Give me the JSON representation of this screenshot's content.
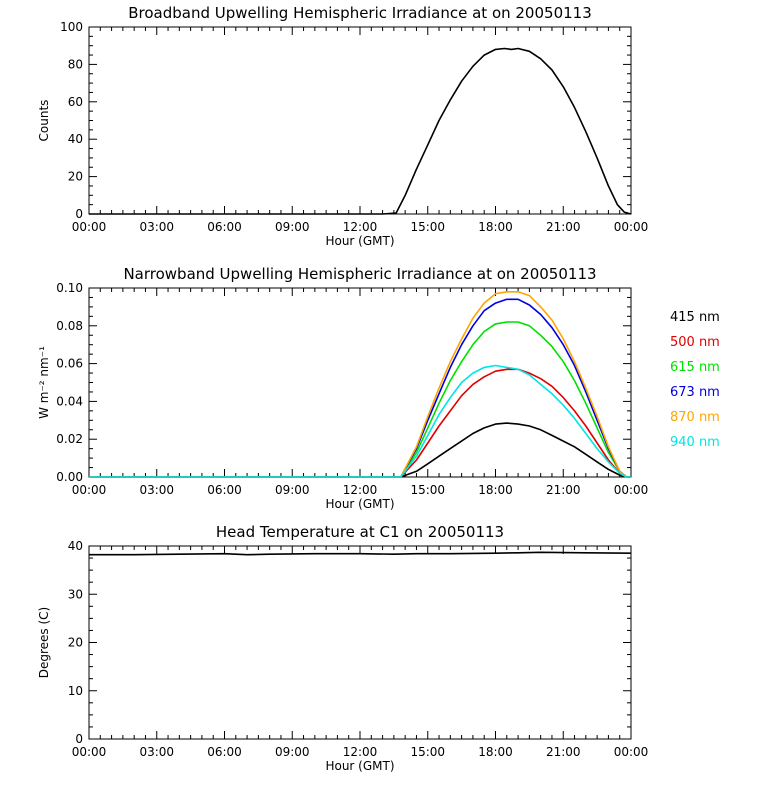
{
  "chart_data": [
    {
      "type": "line",
      "title": "Broadband Upwelling Hemispheric Irradiance at  on 20050113",
      "xlabel": "Hour (GMT)",
      "ylabel": "Counts",
      "xlim": [
        0,
        24
      ],
      "ylim": [
        0,
        100
      ],
      "x_ticks": [
        "00:00",
        "03:00",
        "06:00",
        "09:00",
        "12:00",
        "15:00",
        "18:00",
        "21:00",
        "00:00"
      ],
      "y_ticks": [
        "0",
        "20",
        "40",
        "60",
        "80",
        "100"
      ],
      "grid": false,
      "series": [
        {
          "color": "#000000",
          "x": [
            0,
            2,
            4,
            6,
            8,
            10,
            12,
            13,
            13.6,
            14,
            14.5,
            15,
            15.5,
            16,
            16.5,
            17,
            17.5,
            18,
            18.4,
            18.7,
            19,
            19.5,
            20,
            20.5,
            21,
            21.5,
            22,
            22.5,
            23,
            23.4,
            23.7,
            24
          ],
          "y": [
            0,
            0,
            0,
            0,
            0,
            0,
            0,
            0,
            0.5,
            10,
            24,
            37,
            50,
            61,
            71,
            79,
            85,
            88,
            88.5,
            88,
            88.5,
            87,
            83,
            77,
            68,
            57,
            44,
            30,
            15,
            5,
            1,
            0
          ]
        }
      ]
    },
    {
      "type": "line",
      "title": "Narrowband Upwelling Hemispheric Irradiance at  on 20050113",
      "xlabel": "Hour (GMT)",
      "ylabel": "W m⁻² nm⁻¹",
      "xlim": [
        0,
        24
      ],
      "ylim": [
        0,
        0.1
      ],
      "x_ticks": [
        "00:00",
        "03:00",
        "06:00",
        "09:00",
        "12:00",
        "15:00",
        "18:00",
        "21:00",
        "00:00"
      ],
      "y_ticks": [
        "0.00",
        "0.02",
        "0.04",
        "0.06",
        "0.08",
        "0.10"
      ],
      "grid": false,
      "legend_position": "right",
      "series": [
        {
          "name": "415 nm",
          "color": "#000000",
          "x": [
            0,
            13.5,
            13.8,
            14.5,
            15,
            15.5,
            16,
            16.5,
            17,
            17.5,
            18,
            18.5,
            19,
            19.5,
            20,
            20.5,
            21,
            21.5,
            22,
            22.5,
            23,
            23.5,
            23.8,
            24
          ],
          "y": [
            0,
            0,
            0,
            0.003,
            0.007,
            0.011,
            0.015,
            0.019,
            0.023,
            0.026,
            0.028,
            0.0285,
            0.028,
            0.027,
            0.025,
            0.022,
            0.019,
            0.016,
            0.012,
            0.008,
            0.004,
            0.001,
            0,
            0
          ]
        },
        {
          "name": "500 nm",
          "color": "#e00000",
          "x": [
            0,
            13.5,
            13.8,
            14.5,
            15,
            15.5,
            16,
            16.5,
            17,
            17.5,
            18,
            18.5,
            19,
            19.5,
            20,
            20.5,
            21,
            21.5,
            22,
            22.5,
            23,
            23.5,
            23.8,
            24
          ],
          "y": [
            0,
            0,
            0,
            0.009,
            0.018,
            0.027,
            0.035,
            0.043,
            0.049,
            0.053,
            0.056,
            0.057,
            0.057,
            0.055,
            0.052,
            0.048,
            0.042,
            0.035,
            0.027,
            0.018,
            0.009,
            0.002,
            0,
            0
          ]
        },
        {
          "name": "615 nm",
          "color": "#00e000",
          "x": [
            0,
            13.5,
            13.8,
            14.5,
            15,
            15.5,
            16,
            16.5,
            17,
            17.5,
            18,
            18.5,
            19,
            19.5,
            20,
            20.5,
            21,
            21.5,
            22,
            22.5,
            23,
            23.5,
            23.8,
            24
          ],
          "y": [
            0,
            0,
            0,
            0.013,
            0.026,
            0.039,
            0.051,
            0.061,
            0.07,
            0.077,
            0.081,
            0.082,
            0.082,
            0.08,
            0.075,
            0.069,
            0.061,
            0.051,
            0.039,
            0.026,
            0.013,
            0.003,
            0,
            0
          ]
        },
        {
          "name": "673 nm",
          "color": "#0000e0",
          "x": [
            0,
            13.5,
            13.8,
            14.5,
            15,
            15.5,
            16,
            16.5,
            17,
            17.5,
            18,
            18.5,
            19,
            19.5,
            20,
            20.5,
            21,
            21.5,
            22,
            22.5,
            23,
            23.5,
            23.8,
            24
          ],
          "y": [
            0,
            0,
            0,
            0.015,
            0.03,
            0.044,
            0.058,
            0.07,
            0.08,
            0.088,
            0.092,
            0.094,
            0.094,
            0.091,
            0.086,
            0.079,
            0.07,
            0.059,
            0.045,
            0.03,
            0.015,
            0.003,
            0,
            0
          ]
        },
        {
          "name": "870 nm",
          "color": "#ffa500",
          "x": [
            0,
            13.5,
            13.8,
            14.5,
            15,
            15.5,
            16,
            16.5,
            17,
            17.5,
            18,
            18.5,
            19,
            19.5,
            20,
            20.5,
            21,
            21.5,
            22,
            22.5,
            23,
            23.5,
            23.8,
            24
          ],
          "y": [
            0,
            0,
            0,
            0.016,
            0.032,
            0.047,
            0.061,
            0.073,
            0.084,
            0.092,
            0.097,
            0.098,
            0.098,
            0.096,
            0.09,
            0.083,
            0.073,
            0.061,
            0.047,
            0.032,
            0.016,
            0.003,
            0,
            0
          ]
        },
        {
          "name": "940 nm",
          "color": "#00e5e5",
          "x": [
            0,
            13.5,
            13.8,
            14.5,
            15,
            15.5,
            16,
            16.5,
            17,
            17.5,
            18,
            18.5,
            19,
            19.5,
            20,
            20.5,
            21,
            21.5,
            22,
            22.5,
            23,
            23.5,
            23.8,
            24
          ],
          "y": [
            0,
            0,
            0,
            0.011,
            0.022,
            0.033,
            0.042,
            0.05,
            0.055,
            0.058,
            0.059,
            0.058,
            0.057,
            0.054,
            0.049,
            0.044,
            0.038,
            0.031,
            0.023,
            0.015,
            0.008,
            0.002,
            0,
            0
          ]
        }
      ]
    },
    {
      "type": "line",
      "title": "Head Temperature at C1 on 20050113",
      "xlabel": "Hour (GMT)",
      "ylabel": "Degrees (C)",
      "xlim": [
        0,
        24
      ],
      "ylim": [
        0,
        40
      ],
      "x_ticks": [
        "00:00",
        "03:00",
        "06:00",
        "09:00",
        "12:00",
        "15:00",
        "18:00",
        "21:00",
        "00:00"
      ],
      "y_ticks": [
        "0",
        "10",
        "20",
        "30",
        "40"
      ],
      "grid": false,
      "series": [
        {
          "color": "#000000",
          "x": [
            0,
            2,
            4,
            6,
            7,
            8,
            10,
            12,
            13.5,
            14.5,
            16,
            18,
            19,
            20,
            22,
            24
          ],
          "y": [
            38.2,
            38.2,
            38.3,
            38.4,
            38.2,
            38.3,
            38.4,
            38.4,
            38.3,
            38.4,
            38.4,
            38.5,
            38.6,
            38.7,
            38.6,
            38.5
          ]
        }
      ]
    }
  ]
}
